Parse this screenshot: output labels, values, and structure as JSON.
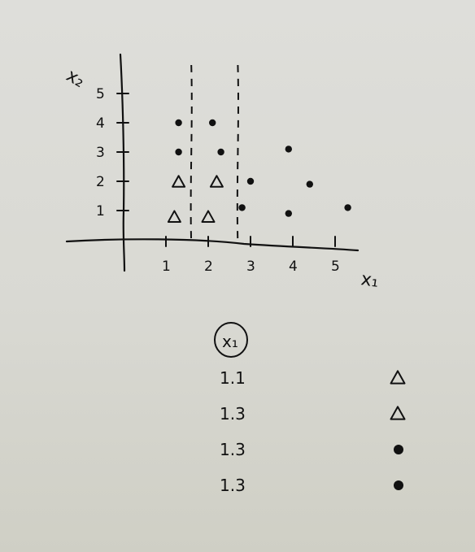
{
  "plot": {
    "x_axis_label": "x₁",
    "y_axis_label": "x₂",
    "x_ticks": [
      "1",
      "2",
      "3",
      "4",
      "5"
    ],
    "y_ticks": [
      "1",
      "2",
      "3",
      "4",
      "5"
    ],
    "split_lines_x": [
      1.6,
      2.7
    ]
  },
  "points": [
    {
      "x": 1.3,
      "y": 4,
      "shape": "dot"
    },
    {
      "x": 2.1,
      "y": 4,
      "shape": "dot"
    },
    {
      "x": 1.3,
      "y": 3,
      "shape": "dot"
    },
    {
      "x": 2.3,
      "y": 3,
      "shape": "dot"
    },
    {
      "x": 1.3,
      "y": 2,
      "shape": "triangle"
    },
    {
      "x": 2.2,
      "y": 2,
      "shape": "triangle"
    },
    {
      "x": 1.2,
      "y": 0.8,
      "shape": "triangle"
    },
    {
      "x": 2.0,
      "y": 0.8,
      "shape": "triangle"
    },
    {
      "x": 2.8,
      "y": 1.1,
      "shape": "dot"
    },
    {
      "x": 3.0,
      "y": 2.0,
      "shape": "dot"
    },
    {
      "x": 3.9,
      "y": 3.1,
      "shape": "dot"
    },
    {
      "x": 4.4,
      "y": 1.9,
      "shape": "dot"
    },
    {
      "x": 3.9,
      "y": 0.9,
      "shape": "dot"
    },
    {
      "x": 5.3,
      "y": 1.1,
      "shape": "dot"
    }
  ],
  "table": {
    "header": "x₁",
    "rows": [
      {
        "value": "1.1",
        "shape": "triangle"
      },
      {
        "value": "1.3",
        "shape": "triangle"
      },
      {
        "value": "1.3",
        "shape": "dot"
      },
      {
        "value": "1.3",
        "shape": "dot"
      }
    ]
  }
}
